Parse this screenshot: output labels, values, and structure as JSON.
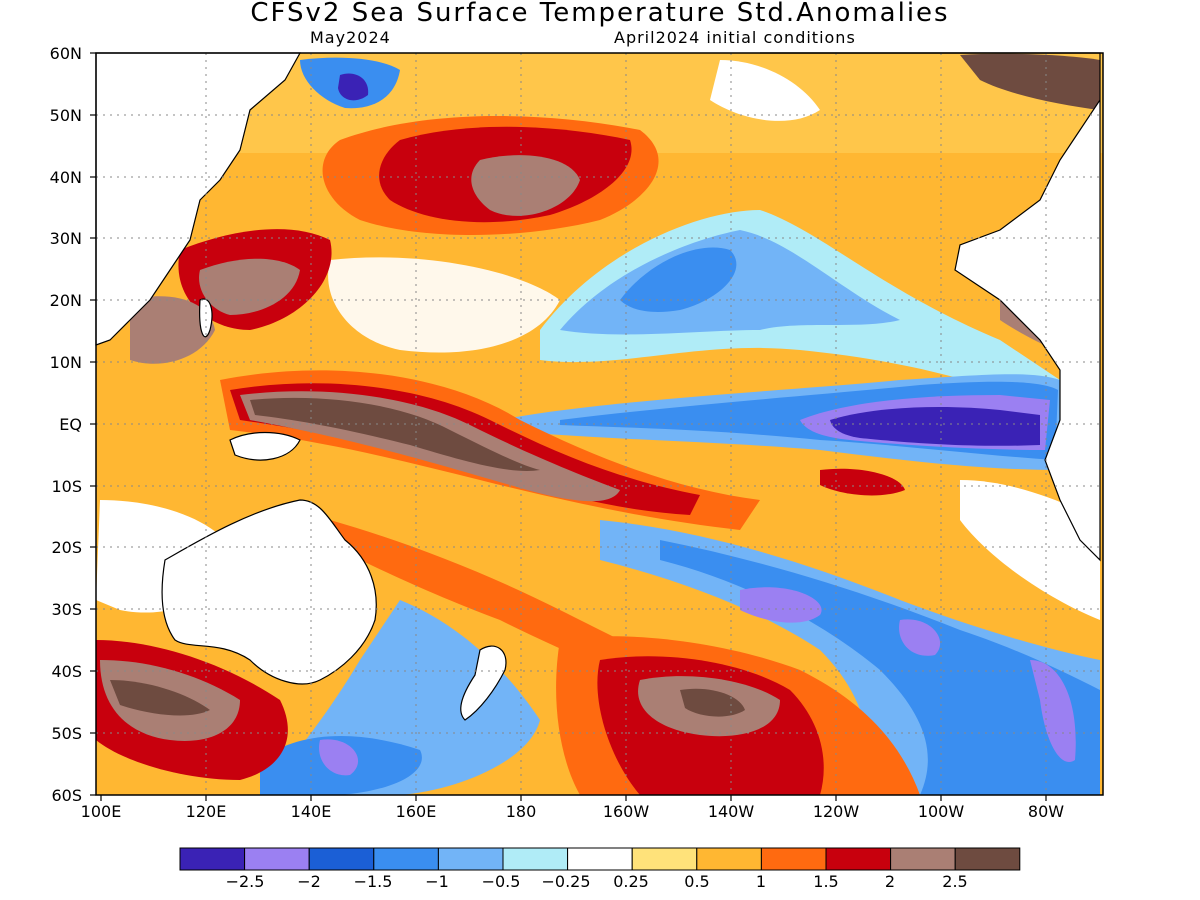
{
  "title": "CFSv2 Sea Surface Temperature Std.Anomalies",
  "subtitle_left": "May2024",
  "subtitle_right": "April2024 initial conditions",
  "lat_labels": [
    "60N",
    "50N",
    "40N",
    "30N",
    "20N",
    "10N",
    "EQ",
    "10S",
    "20S",
    "30S",
    "40S",
    "50S",
    "60S"
  ],
  "lon_labels": [
    "100E",
    "120E",
    "140E",
    "160E",
    "180",
    "160W",
    "140W",
    "120W",
    "100W",
    "80W"
  ],
  "colorbar": {
    "colors": [
      "#3a22b5",
      "#9b80f2",
      "#1b5fd6",
      "#3a8ef0",
      "#72b4f7",
      "#b0ecf7",
      "#ffffff",
      "#ffe27a",
      "#ffb732",
      "#ff6a10",
      "#c8000d",
      "#aa7f74",
      "#6e4b40"
    ],
    "labels": [
      "−2.5",
      "−2",
      "−1.5",
      "−1",
      "−0.5",
      "−0.25",
      "0.25",
      "0.5",
      "1",
      "1.5",
      "2",
      "2.5"
    ]
  }
}
